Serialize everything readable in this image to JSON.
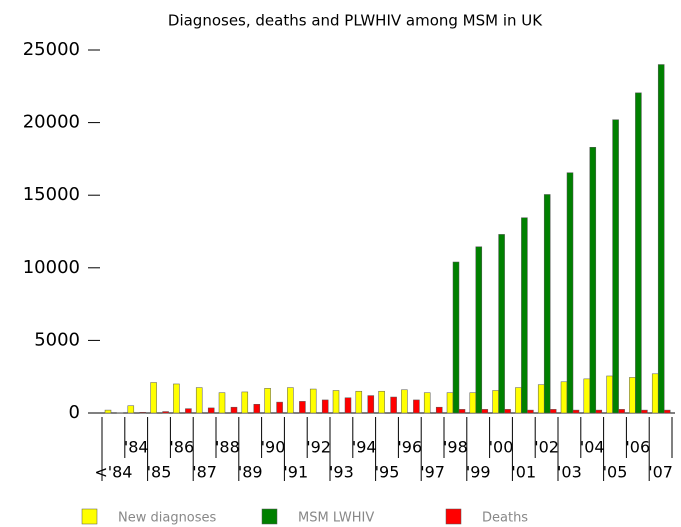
{
  "chart_data": {
    "type": "bar",
    "title": "Diagnoses, deaths and PLWHIV among MSM in UK",
    "categories": [
      "<'84",
      "'84",
      "'85",
      "'86",
      "'87",
      "'88",
      "'89",
      "'90",
      "'91",
      "'92",
      "'93",
      "'94",
      "'95",
      "'96",
      "'97",
      "'98",
      "'99",
      "'00",
      "'01",
      "'02",
      "'03",
      "'04",
      "'05",
      "'06",
      "'07"
    ],
    "series": [
      {
        "name": "New diagnoses",
        "color": "#ffff00",
        "values": [
          200,
          500,
          2100,
          2000,
          1750,
          1400,
          1450,
          1700,
          1750,
          1650,
          1550,
          1500,
          1500,
          1600,
          1400,
          1400,
          1400,
          1550,
          1750,
          1950,
          2150,
          2350,
          2550,
          2450,
          2700
        ]
      },
      {
        "name": "MSM LWHIV",
        "color": "#008000",
        "values": [
          null,
          null,
          null,
          null,
          null,
          null,
          null,
          null,
          null,
          null,
          null,
          null,
          null,
          null,
          null,
          10400,
          11450,
          12300,
          13450,
          15050,
          16550,
          18300,
          20200,
          22050,
          24000
        ]
      },
      {
        "name": "Deaths",
        "color": "#ff0000",
        "values": [
          20,
          50,
          100,
          300,
          350,
          400,
          600,
          750,
          800,
          900,
          1050,
          1200,
          1100,
          900,
          400,
          250,
          250,
          250,
          200,
          250,
          200,
          200,
          250,
          200,
          200
        ]
      }
    ],
    "ylim": [
      0,
      25000
    ],
    "yticks": [
      0,
      5000,
      10000,
      15000,
      20000,
      25000
    ],
    "legend": "bottom"
  }
}
